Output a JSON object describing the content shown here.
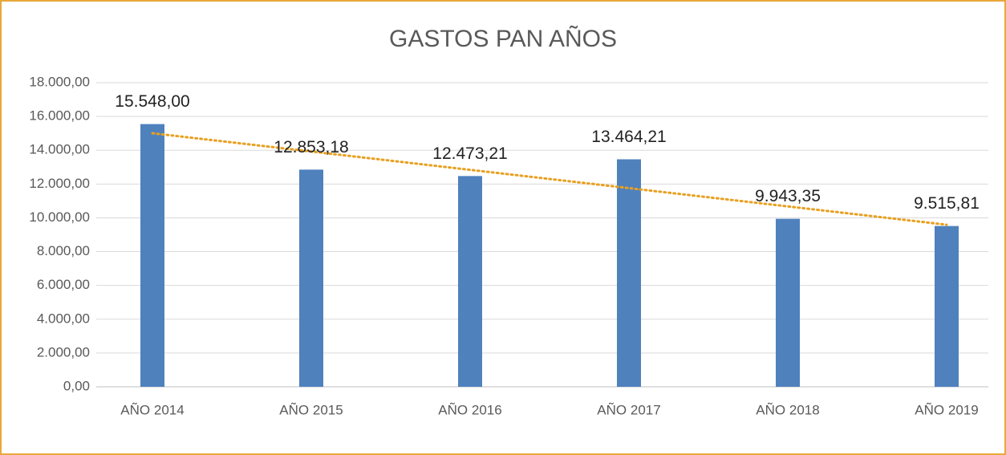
{
  "chart_data": {
    "type": "bar",
    "title": "GASTOS PAN AÑOS",
    "categories": [
      "AÑO 2014",
      "AÑO 2015",
      "AÑO 2016",
      "AÑO 2017",
      "AÑO 2018",
      "AÑO 2019"
    ],
    "values": [
      15548.0,
      12853.18,
      12473.21,
      13464.21,
      9943.35,
      9515.81
    ],
    "value_labels": [
      "15.548,00",
      "12.853,18",
      "12.473,21",
      "13.464,21",
      "9.943,35",
      "9.515,81"
    ],
    "color": "#4f81bd",
    "ylim": [
      0,
      18000
    ],
    "yticks": [
      {
        "value": 0,
        "label": "0,00"
      },
      {
        "value": 2000,
        "label": "2.000,00"
      },
      {
        "value": 4000,
        "label": "4.000,00"
      },
      {
        "value": 6000,
        "label": "6.000,00"
      },
      {
        "value": 8000,
        "label": "8.000,00"
      },
      {
        "value": 10000,
        "label": "10.000,00"
      },
      {
        "value": 12000,
        "label": "12.000,00"
      },
      {
        "value": 14000,
        "label": "14.000,00"
      },
      {
        "value": 16000,
        "label": "16.000,00"
      },
      {
        "value": 18000,
        "label": "18.000,00"
      }
    ],
    "grid": true,
    "trendline": "linear",
    "trendline_color": "#e8a020"
  }
}
